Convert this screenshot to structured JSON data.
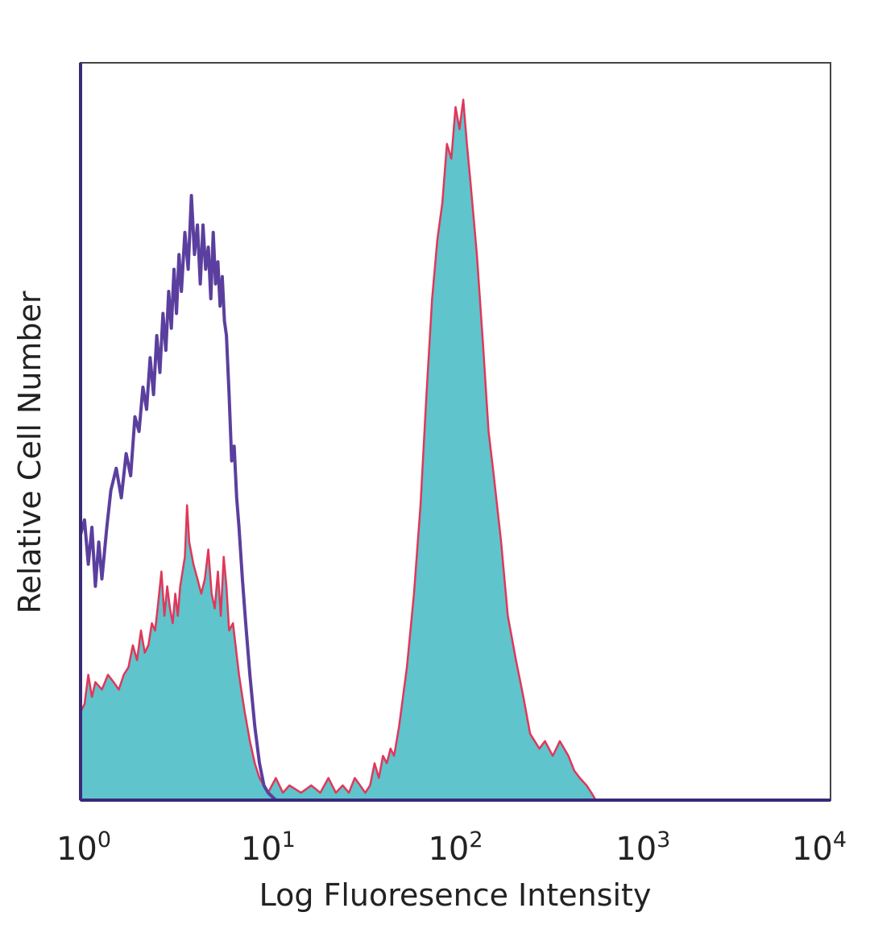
{
  "chart_data": {
    "type": "area",
    "title": "",
    "xlabel": "Log Fluoresence Intensity",
    "ylabel": "Relative Cell Number",
    "x_scale": "log",
    "xlim": [
      1,
      10000
    ],
    "ylim": [
      0,
      100
    ],
    "x_ticks": [
      {
        "base": "10",
        "exp": "0"
      },
      {
        "base": "10",
        "exp": "1"
      },
      {
        "base": "10",
        "exp": "2"
      },
      {
        "base": "10",
        "exp": "3"
      },
      {
        "base": "10",
        "exp": "4"
      }
    ],
    "grid": false,
    "legend": "none",
    "series": [
      {
        "style": "outline",
        "color": "#5b3f9e",
        "points": [
          [
            1.0,
            0
          ],
          [
            1.0,
            36
          ],
          [
            1.05,
            38
          ],
          [
            1.1,
            32
          ],
          [
            1.15,
            37
          ],
          [
            1.2,
            29
          ],
          [
            1.25,
            35
          ],
          [
            1.3,
            30
          ],
          [
            1.38,
            37
          ],
          [
            1.45,
            42
          ],
          [
            1.55,
            45
          ],
          [
            1.65,
            41
          ],
          [
            1.75,
            47
          ],
          [
            1.85,
            44
          ],
          [
            1.95,
            52
          ],
          [
            2.05,
            50
          ],
          [
            2.15,
            56
          ],
          [
            2.25,
            53
          ],
          [
            2.35,
            60
          ],
          [
            2.45,
            55
          ],
          [
            2.55,
            63
          ],
          [
            2.65,
            58
          ],
          [
            2.75,
            66
          ],
          [
            2.85,
            61
          ],
          [
            2.95,
            69
          ],
          [
            3.05,
            64
          ],
          [
            3.15,
            72
          ],
          [
            3.25,
            66
          ],
          [
            3.35,
            74
          ],
          [
            3.45,
            69
          ],
          [
            3.6,
            77
          ],
          [
            3.75,
            72
          ],
          [
            3.9,
            82
          ],
          [
            4.05,
            74
          ],
          [
            4.2,
            78
          ],
          [
            4.35,
            70
          ],
          [
            4.5,
            78
          ],
          [
            4.65,
            72
          ],
          [
            4.8,
            75
          ],
          [
            4.95,
            68
          ],
          [
            5.1,
            77
          ],
          [
            5.25,
            70
          ],
          [
            5.4,
            73
          ],
          [
            5.55,
            67
          ],
          [
            5.7,
            71
          ],
          [
            5.85,
            65
          ],
          [
            6.0,
            63
          ],
          [
            6.2,
            55
          ],
          [
            6.4,
            46
          ],
          [
            6.6,
            48
          ],
          [
            6.8,
            41
          ],
          [
            7.0,
            37
          ],
          [
            7.3,
            30
          ],
          [
            7.6,
            24
          ],
          [
            8.0,
            17
          ],
          [
            8.5,
            10
          ],
          [
            9.0,
            5
          ],
          [
            9.5,
            2
          ],
          [
            10,
            1
          ],
          [
            11,
            0
          ],
          [
            12,
            0
          ]
        ]
      },
      {
        "style": "filled",
        "fill": "#5fc4cc",
        "color": "#e0375a",
        "points": [
          [
            1.0,
            0
          ],
          [
            1.0,
            12
          ],
          [
            1.05,
            13
          ],
          [
            1.1,
            17
          ],
          [
            1.15,
            14
          ],
          [
            1.2,
            16
          ],
          [
            1.3,
            15
          ],
          [
            1.4,
            17
          ],
          [
            1.5,
            16
          ],
          [
            1.6,
            15
          ],
          [
            1.7,
            17
          ],
          [
            1.8,
            18
          ],
          [
            1.9,
            21
          ],
          [
            2.0,
            19
          ],
          [
            2.1,
            23
          ],
          [
            2.2,
            20
          ],
          [
            2.3,
            21
          ],
          [
            2.4,
            24
          ],
          [
            2.5,
            23
          ],
          [
            2.6,
            27
          ],
          [
            2.7,
            31
          ],
          [
            2.8,
            25
          ],
          [
            2.9,
            29
          ],
          [
            3.0,
            26
          ],
          [
            3.1,
            24
          ],
          [
            3.2,
            28
          ],
          [
            3.3,
            25
          ],
          [
            3.4,
            29
          ],
          [
            3.6,
            33
          ],
          [
            3.7,
            40
          ],
          [
            3.8,
            35
          ],
          [
            4.0,
            32
          ],
          [
            4.2,
            30
          ],
          [
            4.4,
            28
          ],
          [
            4.6,
            30
          ],
          [
            4.8,
            34
          ],
          [
            5.0,
            28
          ],
          [
            5.2,
            26
          ],
          [
            5.4,
            31
          ],
          [
            5.6,
            25
          ],
          [
            5.8,
            33
          ],
          [
            6.0,
            29
          ],
          [
            6.2,
            23
          ],
          [
            6.5,
            24
          ],
          [
            7.0,
            17
          ],
          [
            7.5,
            12
          ],
          [
            8.0,
            8
          ],
          [
            8.5,
            5
          ],
          [
            9.0,
            3
          ],
          [
            9.5,
            2
          ],
          [
            10,
            1
          ],
          [
            11,
            3
          ],
          [
            12,
            1
          ],
          [
            13,
            2
          ],
          [
            15,
            1
          ],
          [
            17,
            2
          ],
          [
            19,
            1
          ],
          [
            21,
            3
          ],
          [
            23,
            1
          ],
          [
            25,
            2
          ],
          [
            27,
            1
          ],
          [
            29,
            3
          ],
          [
            31,
            2
          ],
          [
            33,
            1
          ],
          [
            35,
            2
          ],
          [
            37,
            5
          ],
          [
            39,
            3
          ],
          [
            41,
            6
          ],
          [
            43,
            5
          ],
          [
            45,
            7
          ],
          [
            47,
            6
          ],
          [
            50,
            10
          ],
          [
            55,
            18
          ],
          [
            60,
            28
          ],
          [
            65,
            40
          ],
          [
            70,
            55
          ],
          [
            75,
            68
          ],
          [
            80,
            76
          ],
          [
            85,
            81
          ],
          [
            90,
            89
          ],
          [
            95,
            87
          ],
          [
            100,
            94
          ],
          [
            105,
            91
          ],
          [
            110,
            95
          ],
          [
            115,
            89
          ],
          [
            120,
            84
          ],
          [
            130,
            74
          ],
          [
            140,
            62
          ],
          [
            150,
            50
          ],
          [
            160,
            44
          ],
          [
            175,
            35
          ],
          [
            190,
            25
          ],
          [
            210,
            19
          ],
          [
            230,
            14
          ],
          [
            250,
            9
          ],
          [
            280,
            7
          ],
          [
            300,
            8
          ],
          [
            330,
            6
          ],
          [
            360,
            8
          ],
          [
            400,
            6
          ],
          [
            430,
            4
          ],
          [
            460,
            3
          ],
          [
            500,
            2
          ],
          [
            530,
            1
          ],
          [
            560,
            0
          ],
          [
            600,
            0
          ]
        ]
      }
    ]
  }
}
